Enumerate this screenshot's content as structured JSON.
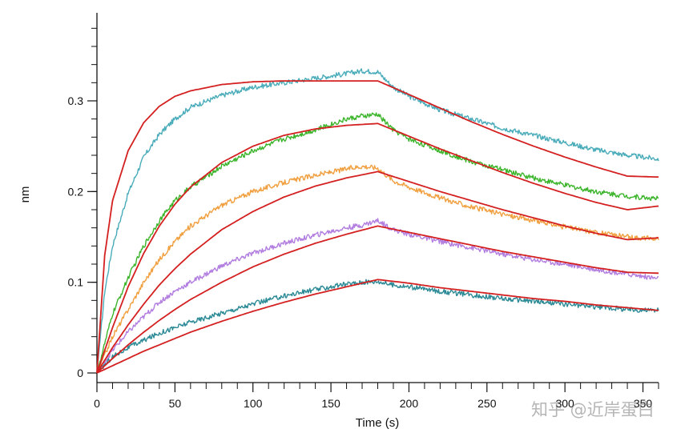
{
  "chart_data": {
    "type": "line",
    "title": "",
    "xlabel": "Time (s)",
    "ylabel": "nm",
    "xlim": [
      0,
      360
    ],
    "ylim": [
      -0.01,
      0.39
    ],
    "x_ticks": [
      0,
      50,
      100,
      150,
      200,
      250,
      300,
      350
    ],
    "x_tick_labels": [
      "0",
      "50",
      "100",
      "150",
      "200",
      "250",
      "300",
      "350"
    ],
    "y_ticks": [
      0,
      0.1,
      0.2,
      0.3
    ],
    "y_tick_labels": [
      "0",
      "0.1",
      "0.2",
      "0.3"
    ],
    "grid": false,
    "association_end_s": 180,
    "series": [
      {
        "name": "response-1",
        "kind": "data",
        "color": "#4aacba",
        "x": [
          0,
          5,
          10,
          20,
          30,
          40,
          50,
          60,
          80,
          100,
          120,
          140,
          160,
          170,
          180,
          190,
          200,
          220,
          240,
          260,
          280,
          300,
          320,
          340,
          360
        ],
        "y": [
          0,
          0.09,
          0.14,
          0.198,
          0.238,
          0.263,
          0.28,
          0.293,
          0.306,
          0.315,
          0.32,
          0.325,
          0.33,
          0.333,
          0.332,
          0.315,
          0.305,
          0.29,
          0.28,
          0.27,
          0.262,
          0.254,
          0.246,
          0.24,
          0.236
        ]
      },
      {
        "name": "response-2",
        "kind": "data",
        "color": "#3cb52c",
        "x": [
          0,
          10,
          20,
          30,
          40,
          50,
          60,
          80,
          100,
          120,
          140,
          160,
          170,
          180,
          190,
          200,
          220,
          240,
          260,
          280,
          300,
          320,
          340,
          360
        ],
        "y": [
          0,
          0.065,
          0.105,
          0.14,
          0.168,
          0.19,
          0.205,
          0.228,
          0.245,
          0.258,
          0.268,
          0.28,
          0.283,
          0.285,
          0.268,
          0.258,
          0.245,
          0.233,
          0.224,
          0.215,
          0.207,
          0.2,
          0.195,
          0.192
        ]
      },
      {
        "name": "response-3",
        "kind": "data",
        "color": "#f0a040",
        "x": [
          0,
          10,
          20,
          30,
          40,
          50,
          60,
          80,
          100,
          120,
          140,
          160,
          170,
          180,
          190,
          200,
          220,
          240,
          260,
          280,
          300,
          320,
          340,
          360
        ],
        "y": [
          0,
          0.04,
          0.07,
          0.1,
          0.125,
          0.145,
          0.162,
          0.185,
          0.2,
          0.21,
          0.218,
          0.225,
          0.228,
          0.226,
          0.212,
          0.205,
          0.193,
          0.183,
          0.175,
          0.168,
          0.161,
          0.155,
          0.15,
          0.148
        ]
      },
      {
        "name": "response-4",
        "kind": "data",
        "color": "#b27ee0",
        "x": [
          0,
          10,
          20,
          30,
          40,
          50,
          60,
          80,
          100,
          120,
          140,
          160,
          170,
          180,
          190,
          200,
          220,
          240,
          260,
          280,
          300,
          320,
          340,
          360
        ],
        "y": [
          0,
          0.025,
          0.045,
          0.062,
          0.078,
          0.09,
          0.1,
          0.118,
          0.132,
          0.143,
          0.152,
          0.16,
          0.163,
          0.168,
          0.158,
          0.153,
          0.145,
          0.138,
          0.131,
          0.125,
          0.12,
          0.114,
          0.109,
          0.104
        ]
      },
      {
        "name": "response-5",
        "kind": "data",
        "color": "#2c8a96",
        "x": [
          0,
          10,
          20,
          30,
          40,
          50,
          60,
          80,
          100,
          120,
          140,
          160,
          170,
          180,
          190,
          200,
          220,
          240,
          260,
          280,
          300,
          320,
          340,
          360
        ],
        "y": [
          0,
          0.018,
          0.028,
          0.036,
          0.044,
          0.05,
          0.056,
          0.066,
          0.076,
          0.085,
          0.092,
          0.098,
          0.1,
          0.101,
          0.097,
          0.095,
          0.09,
          0.086,
          0.082,
          0.079,
          0.076,
          0.073,
          0.07,
          0.069
        ]
      },
      {
        "name": "fit-1",
        "kind": "fit",
        "color": "#d42020",
        "x": [
          0,
          5,
          10,
          20,
          30,
          40,
          50,
          60,
          80,
          100,
          120,
          140,
          160,
          180,
          200,
          220,
          240,
          260,
          280,
          300,
          320,
          340,
          360
        ],
        "y": [
          0,
          0.13,
          0.19,
          0.245,
          0.276,
          0.294,
          0.305,
          0.311,
          0.318,
          0.321,
          0.322,
          0.322,
          0.322,
          0.322,
          0.307,
          0.292,
          0.277,
          0.263,
          0.25,
          0.238,
          0.227,
          0.217,
          0.216
        ]
      },
      {
        "name": "fit-2",
        "kind": "fit",
        "color": "#d42020",
        "x": [
          0,
          10,
          20,
          30,
          40,
          50,
          60,
          80,
          100,
          120,
          140,
          160,
          180,
          200,
          220,
          240,
          260,
          280,
          300,
          320,
          340,
          360
        ],
        "y": [
          0,
          0.05,
          0.095,
          0.132,
          0.162,
          0.186,
          0.205,
          0.232,
          0.25,
          0.262,
          0.269,
          0.273,
          0.275,
          0.261,
          0.247,
          0.234,
          0.221,
          0.209,
          0.198,
          0.188,
          0.18,
          0.184
        ]
      },
      {
        "name": "fit-3",
        "kind": "fit",
        "color": "#d42020",
        "x": [
          0,
          10,
          20,
          30,
          40,
          50,
          60,
          80,
          100,
          120,
          140,
          160,
          180,
          200,
          220,
          240,
          260,
          280,
          300,
          320,
          340,
          360
        ],
        "y": [
          0,
          0.028,
          0.053,
          0.076,
          0.097,
          0.115,
          0.131,
          0.158,
          0.178,
          0.194,
          0.206,
          0.215,
          0.222,
          0.211,
          0.2,
          0.19,
          0.18,
          0.171,
          0.162,
          0.154,
          0.147,
          0.149
        ]
      },
      {
        "name": "fit-4",
        "kind": "fit",
        "color": "#d42020",
        "x": [
          0,
          10,
          20,
          30,
          40,
          50,
          60,
          80,
          100,
          120,
          140,
          160,
          180,
          200,
          220,
          240,
          260,
          280,
          300,
          320,
          340,
          360
        ],
        "y": [
          0,
          0.016,
          0.031,
          0.045,
          0.058,
          0.07,
          0.081,
          0.1,
          0.117,
          0.131,
          0.143,
          0.153,
          0.162,
          0.155,
          0.148,
          0.141,
          0.134,
          0.128,
          0.122,
          0.116,
          0.111,
          0.11
        ]
      },
      {
        "name": "fit-5",
        "kind": "fit",
        "color": "#d42020",
        "x": [
          0,
          10,
          20,
          30,
          40,
          50,
          60,
          80,
          100,
          120,
          140,
          160,
          180,
          200,
          220,
          240,
          260,
          280,
          300,
          320,
          340,
          360
        ],
        "y": [
          0,
          0.008,
          0.016,
          0.024,
          0.031,
          0.038,
          0.045,
          0.057,
          0.068,
          0.078,
          0.087,
          0.095,
          0.103,
          0.099,
          0.094,
          0.09,
          0.086,
          0.082,
          0.079,
          0.075,
          0.072,
          0.069
        ]
      }
    ]
  },
  "watermark": {
    "text": "知乎 @近岸蛋白"
  }
}
